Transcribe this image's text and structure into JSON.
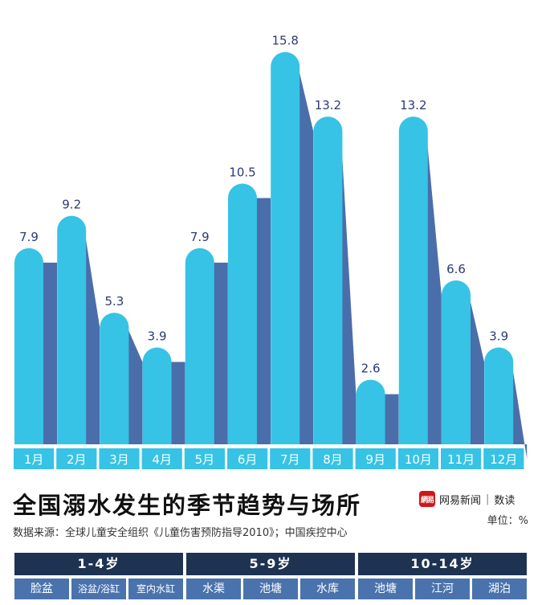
{
  "chart_data": {
    "type": "bar",
    "title": "全国溺水发生的季节趋势与场所",
    "unit_label": "单位：%",
    "categories": [
      "1月",
      "2月",
      "3月",
      "4月",
      "5月",
      "6月",
      "7月",
      "8月",
      "9月",
      "10月",
      "11月",
      "12月"
    ],
    "values": [
      7.9,
      9.2,
      5.3,
      3.9,
      7.9,
      10.5,
      15.8,
      13.2,
      2.6,
      13.2,
      6.6,
      3.9
    ],
    "value_labels": [
      "7.9",
      "9.2",
      "5.3",
      "3.9",
      "7.9",
      "10.5",
      "15.8",
      "13.2",
      "2.6",
      "13.2",
      "6.6",
      "3.9"
    ],
    "ylim": [
      0,
      16.6
    ],
    "grid": false,
    "colors": {
      "bar": "#36c3e5",
      "shadow": "#4a6eaa",
      "month_label_bg": "#36c3e5",
      "value_text": "#2b3a78"
    }
  },
  "source": "数据来源：全球儿童安全组织《儿童伤害预防指导2010》；中国疾控中心",
  "logo": {
    "mark": "網易",
    "name": "网易新闻",
    "separator": "|",
    "column": "数读",
    "brand_color": "#d0161b"
  },
  "places": {
    "groups": [
      {
        "age": "1-4岁",
        "items": [
          "脸盆",
          "浴盆/浴缸",
          "室内水缸"
        ]
      },
      {
        "age": "5-9岁",
        "items": [
          "水渠",
          "池塘",
          "水库"
        ]
      },
      {
        "age": "10-14岁",
        "items": [
          "池塘",
          "江河",
          "湖泊"
        ]
      }
    ],
    "colors": {
      "header_bg": "#1e3352",
      "item_bg": "#4a73ad"
    }
  }
}
